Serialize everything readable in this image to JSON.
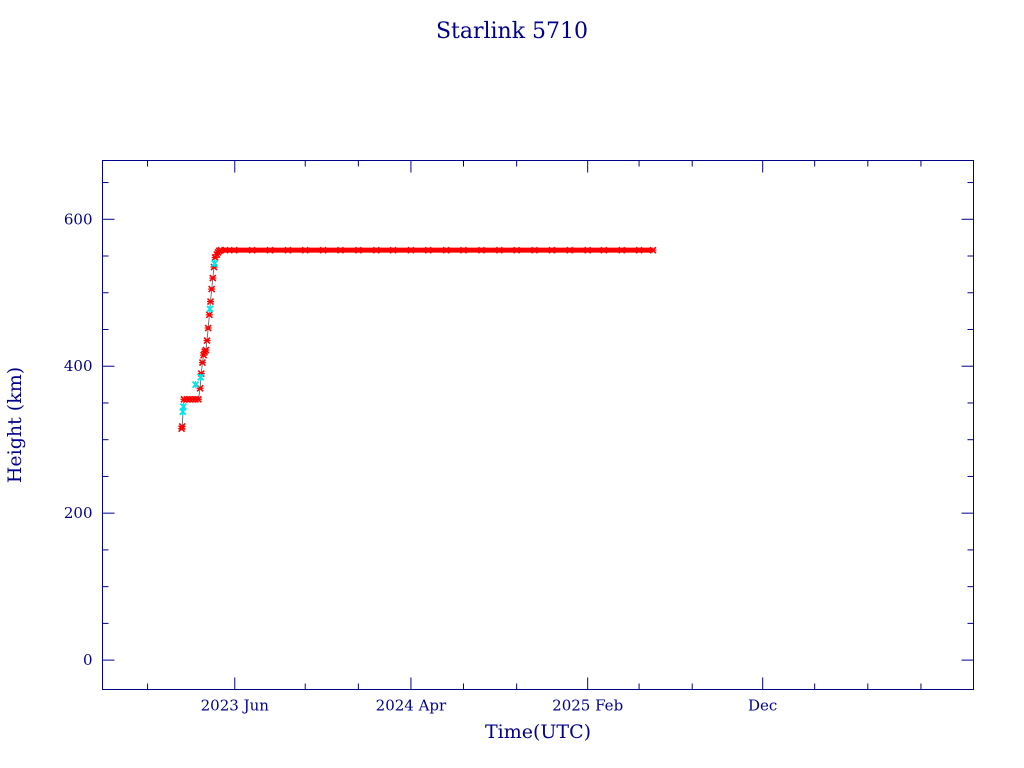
{
  "chart_data": {
    "type": "scatter",
    "title": "Starlink 5710",
    "xlabel": "Time(UTC)",
    "ylabel": "Height (km)",
    "x_range": [
      "2022-10-15",
      "2026-12-01"
    ],
    "ylim": [
      -40,
      680
    ],
    "y_major_ticks": [
      0,
      200,
      400,
      600
    ],
    "y_minor_step": 50,
    "x_tick_labels": [
      {
        "date": "2023-06-01",
        "label": "2023 Jun"
      },
      {
        "date": "2024-04-01",
        "label": "2024 Apr"
      },
      {
        "date": "2025-02-01",
        "label": "2025 Feb"
      },
      {
        "date": "2025-12-01",
        "label": "Dec"
      }
    ],
    "x_minor_ticks": [
      "2023-01-01",
      "2023-10-01",
      "2024-01-01",
      "2024-07-01",
      "2024-10-01",
      "2025-05-01",
      "2025-08-01",
      "2026-03-01",
      "2026-06-01",
      "2026-09-01"
    ],
    "grid": false,
    "colors": {
      "axis": "#00008b",
      "points": "#ff0000",
      "highlight": "#00e5ee",
      "trend": "#555555"
    },
    "series": [
      {
        "marker": "red-cross",
        "points": [
          [
            "2023-03-01",
            315
          ],
          [
            "2023-03-02",
            318
          ],
          [
            "2023-03-05",
            355
          ],
          [
            "2023-03-10",
            355
          ],
          [
            "2023-03-15",
            355
          ],
          [
            "2023-03-20",
            355
          ],
          [
            "2023-03-25",
            355
          ],
          [
            "2023-03-30",
            355
          ],
          [
            "2023-04-02",
            370
          ],
          [
            "2023-04-04",
            390
          ],
          [
            "2023-04-06",
            405
          ],
          [
            "2023-04-08",
            415
          ],
          [
            "2023-04-10",
            420
          ],
          [
            "2023-04-12",
            422
          ],
          [
            "2023-04-14",
            435
          ],
          [
            "2023-04-16",
            452
          ],
          [
            "2023-04-18",
            470
          ],
          [
            "2023-04-20",
            488
          ],
          [
            "2023-04-22",
            505
          ],
          [
            "2023-04-24",
            520
          ],
          [
            "2023-04-26",
            535
          ],
          [
            "2023-04-28",
            548
          ],
          [
            "2023-05-01",
            552
          ],
          [
            "2023-05-03",
            555
          ],
          [
            "2023-05-05",
            557
          ],
          [
            "2023-05-08",
            558
          ],
          [
            "2023-05-15",
            558
          ],
          [
            "2023-05-31",
            558
          ],
          [
            "2023-07-01",
            558
          ],
          [
            "2023-08-01",
            558
          ],
          [
            "2023-09-01",
            558
          ],
          [
            "2023-10-01",
            558
          ],
          [
            "2023-11-01",
            558
          ],
          [
            "2023-12-01",
            558
          ],
          [
            "2024-01-01",
            558
          ],
          [
            "2024-02-01",
            558
          ],
          [
            "2024-03-01",
            558
          ],
          [
            "2024-04-01",
            558
          ],
          [
            "2024-05-01",
            558
          ],
          [
            "2024-06-01",
            558
          ],
          [
            "2024-07-01",
            558
          ],
          [
            "2024-08-01",
            558
          ],
          [
            "2024-09-01",
            558
          ],
          [
            "2024-10-01",
            558
          ],
          [
            "2024-11-01",
            558
          ],
          [
            "2024-12-01",
            558
          ],
          [
            "2025-01-01",
            558
          ],
          [
            "2025-02-01",
            558
          ],
          [
            "2025-03-01",
            558
          ],
          [
            "2025-04-01",
            558
          ],
          [
            "2025-05-01",
            558
          ],
          [
            "2025-05-25",
            558
          ]
        ]
      },
      {
        "marker": "cyan-star",
        "points": [
          [
            "2023-03-03",
            338
          ],
          [
            "2023-03-04",
            345
          ],
          [
            "2023-03-25",
            375
          ],
          [
            "2023-04-03",
            385
          ],
          [
            "2023-04-19",
            478
          ],
          [
            "2023-04-27",
            540
          ]
        ]
      }
    ]
  }
}
